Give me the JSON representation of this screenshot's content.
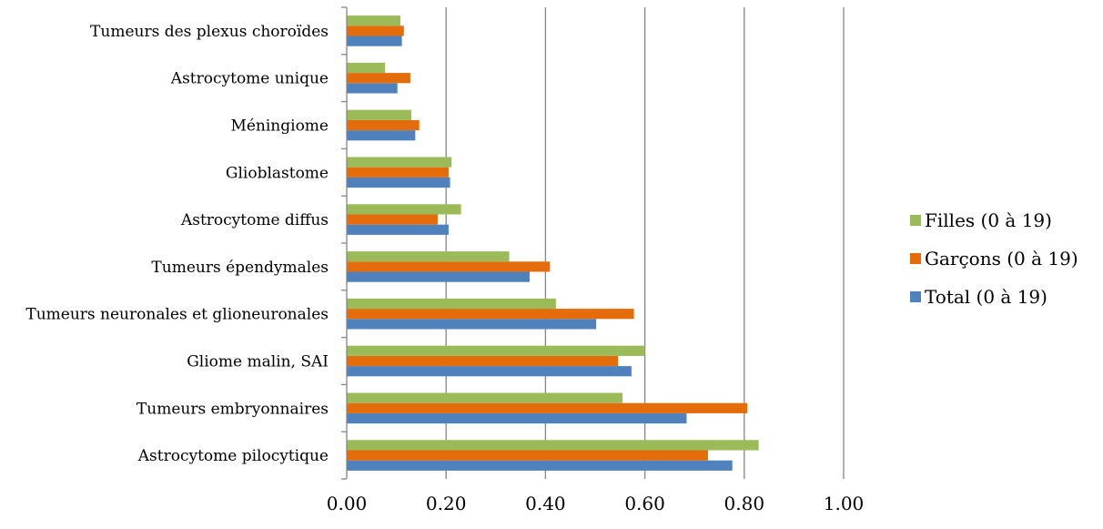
{
  "chart_data": {
    "type": "bar",
    "orientation": "horizontal",
    "title": "",
    "xlabel": "",
    "ylabel": "",
    "xlim": [
      0,
      1.0
    ],
    "x_ticks": [
      "0.00",
      "0.20",
      "0.40",
      "0.60",
      "0.80",
      "1.00"
    ],
    "grid": true,
    "legend_position": "right",
    "categories": [
      "Astrocytome pilocytique",
      "Tumeurs embryonnaires",
      "Gliome malin, SAI",
      "Tumeurs neuronales et glioneuronales",
      "Tumeurs épendymales",
      "Astrocytome diffus",
      "Glioblastome",
      "Méningiome",
      "Astrocytome unique",
      "Tumeurs des plexus choroïdes"
    ],
    "series": [
      {
        "name": "Total (0 à 19)",
        "color": "#4F81BD",
        "values": [
          0.776,
          0.684,
          0.573,
          0.502,
          0.368,
          0.205,
          0.208,
          0.138,
          0.102,
          0.111
        ]
      },
      {
        "name": "Garçons (0 à 19)",
        "color": "#E46C0A",
        "values": [
          0.727,
          0.806,
          0.546,
          0.578,
          0.409,
          0.183,
          0.205,
          0.146,
          0.128,
          0.115
        ]
      },
      {
        "name": "Filles (0 à 19)",
        "color": "#9BBB59",
        "values": [
          0.829,
          0.555,
          0.6,
          0.421,
          0.327,
          0.23,
          0.211,
          0.13,
          0.077,
          0.108
        ]
      }
    ]
  }
}
